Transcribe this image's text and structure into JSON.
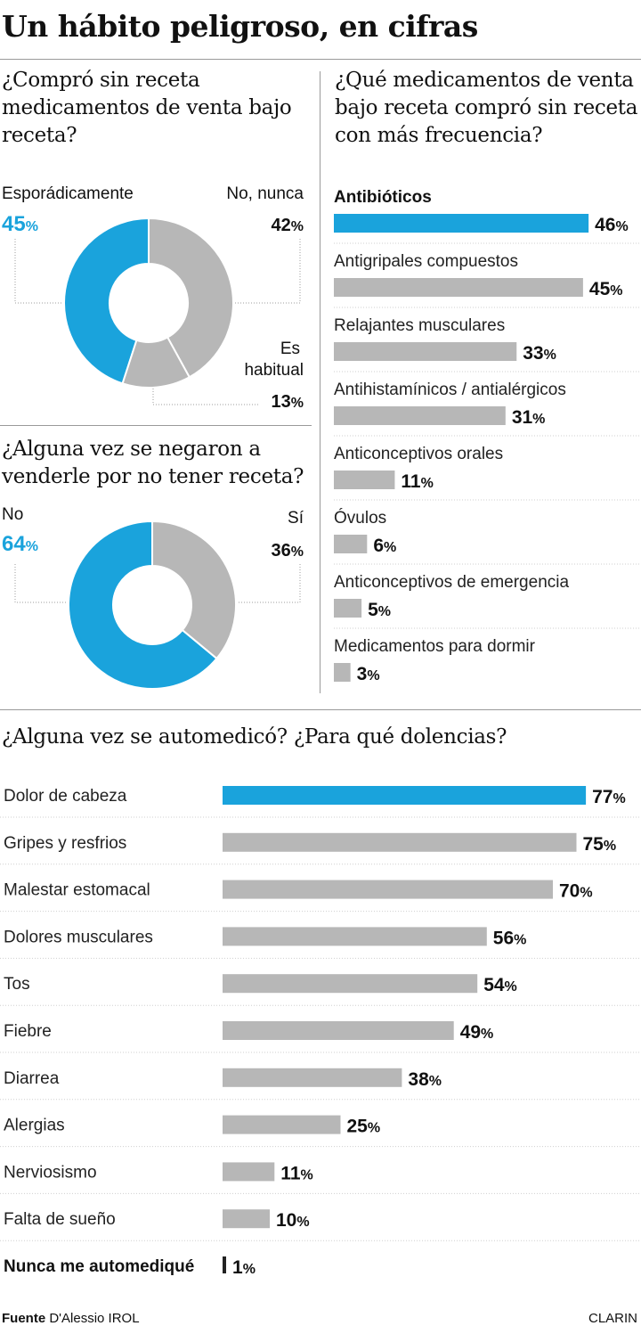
{
  "title": "Un hábito peligroso, en cifras",
  "colors": {
    "highlight": "#1aa3dc",
    "bar": "#b7b7b7",
    "dark": "#222222"
  },
  "chart_data": [
    {
      "id": "compra_sin_receta",
      "type": "pie",
      "style": "donut",
      "title": "¿Compró sin receta medicamentos de venta bajo receta?",
      "slices": [
        {
          "label": "Esporádicamente",
          "value": 45,
          "pct": "45",
          "color": "#1aa3dc"
        },
        {
          "label": "No, nunca",
          "value": 42,
          "pct": "42",
          "color": "#b7b7b7"
        },
        {
          "label": "Es habitual",
          "label_lines": [
            "Es",
            "habitual"
          ],
          "value": 13,
          "pct": "13",
          "color": "#b7b7b7"
        }
      ]
    },
    {
      "id": "negaron_venta",
      "type": "pie",
      "style": "donut",
      "title": "¿Alguna vez se negaron a venderle por no tener receta?",
      "slices": [
        {
          "label": "No",
          "value": 64,
          "pct": "64",
          "color": "#1aa3dc"
        },
        {
          "label": "Sí",
          "value": 36,
          "pct": "36",
          "color": "#b7b7b7"
        }
      ]
    },
    {
      "id": "medicamentos_sin_receta",
      "type": "bar",
      "orientation": "horizontal",
      "title": "¿Qué medicamentos de venta bajo receta compró sin receta con más frecuencia?",
      "unit": "%",
      "categories": [
        "Antibióticos",
        "Antigripales compuestos",
        "Relajantes musculares",
        "Antihistamínicos / antialérgicos",
        "Anticonceptivos orales",
        "Óvulos",
        "Anticonceptivos de emergencia",
        "Medicamentos para dormir"
      ],
      "values": [
        46,
        45,
        33,
        31,
        11,
        6,
        5,
        3
      ],
      "highlight": [
        0
      ]
    },
    {
      "id": "automedicacion",
      "type": "bar",
      "orientation": "horizontal",
      "title": "¿Alguna vez se automedicó? ¿Para qué dolencias?",
      "unit": "%",
      "categories": [
        "Dolor de cabeza",
        "Gripes y resfrios",
        "Malestar estomacal",
        "Dolores musculares",
        "Tos",
        "Fiebre",
        "Diarrea",
        "Alergias",
        "Nerviosismo",
        "Falta de sueño",
        "Nunca me automediqué"
      ],
      "values": [
        77,
        75,
        70,
        56,
        54,
        49,
        38,
        25,
        11,
        10,
        1
      ],
      "highlight": [
        0
      ],
      "emphasis": [
        10
      ]
    }
  ],
  "footer": {
    "source_label": "Fuente",
    "source_name": "D'Alessio IROL",
    "brand": "CLARIN"
  }
}
